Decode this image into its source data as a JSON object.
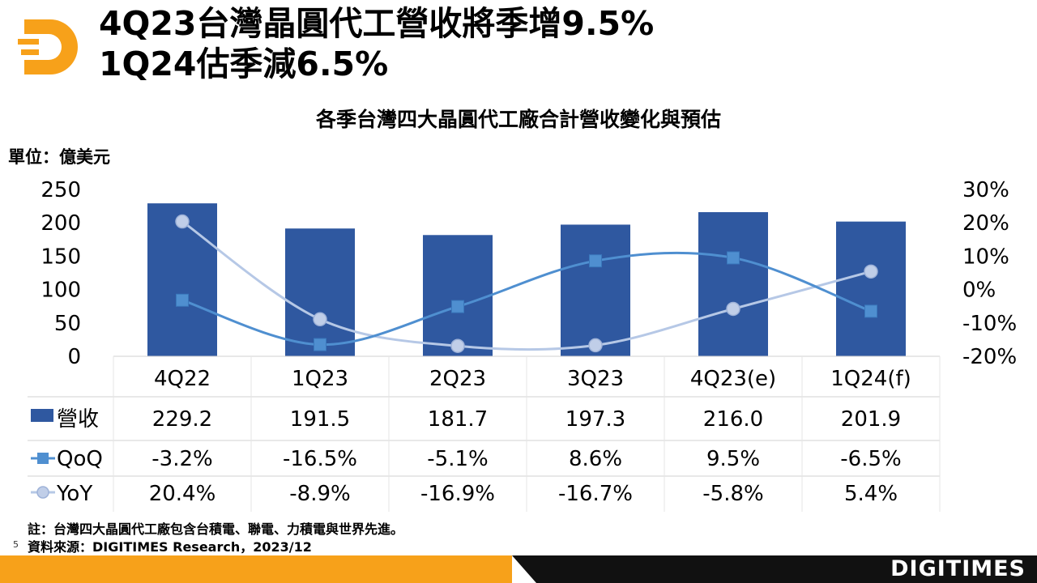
{
  "title_line1": "4Q23台灣晶圓代工營收將季增9.5%",
  "title_line2": "1Q24估季減6.5%",
  "brand": "DIGITIMES",
  "page_number": "5",
  "notes": {
    "note": "註：台灣四大晶圓代工廠包含台積電、聯電、力積電與世界先進。",
    "source": "資料來源：DIGITIMES Research，2023/12"
  },
  "colors": {
    "bar": "#2f58a0",
    "qoq": "#4f8fd0",
    "yoy_line": "#b6c8e6",
    "yoy_marker": "#c0cee8",
    "orange": "#f7a11a",
    "dark": "#111111"
  },
  "chart_data": {
    "type": "bar",
    "title": "各季台灣四大晶圓代工廠合計營收變化與預估",
    "ylabel": "單位：億美元",
    "categories": [
      "4Q22",
      "1Q23",
      "2Q23",
      "3Q23",
      "4Q23(e)",
      "1Q24(f)"
    ],
    "ylim": [
      0,
      250
    ],
    "yticks": [
      "250",
      "200",
      "150",
      "100",
      "50",
      "0"
    ],
    "y2lim": [
      -20,
      30
    ],
    "y2ticks": [
      "30%",
      "20%",
      "10%",
      "0%",
      "-10%",
      "-20%"
    ],
    "series": [
      {
        "name": "營收",
        "type": "bar",
        "axis": "left",
        "values": [
          229.2,
          191.5,
          181.7,
          197.3,
          216.0,
          201.9
        ],
        "labels": [
          "229.2",
          "191.5",
          "181.7",
          "197.3",
          "216.0",
          "201.9"
        ]
      },
      {
        "name": "QoQ",
        "type": "line",
        "axis": "right",
        "values": [
          -3.2,
          -16.5,
          -5.1,
          8.6,
          9.5,
          -6.5
        ],
        "labels": [
          "-3.2%",
          "-16.5%",
          "-5.1%",
          "8.6%",
          "9.5%",
          "-6.5%"
        ]
      },
      {
        "name": "YoY",
        "type": "line",
        "axis": "right",
        "values": [
          20.4,
          -8.9,
          -16.9,
          -16.7,
          -5.8,
          5.4
        ],
        "labels": [
          "20.4%",
          "-8.9%",
          "-16.9%",
          "-16.7%",
          "-5.8%",
          "5.4%"
        ]
      }
    ]
  }
}
